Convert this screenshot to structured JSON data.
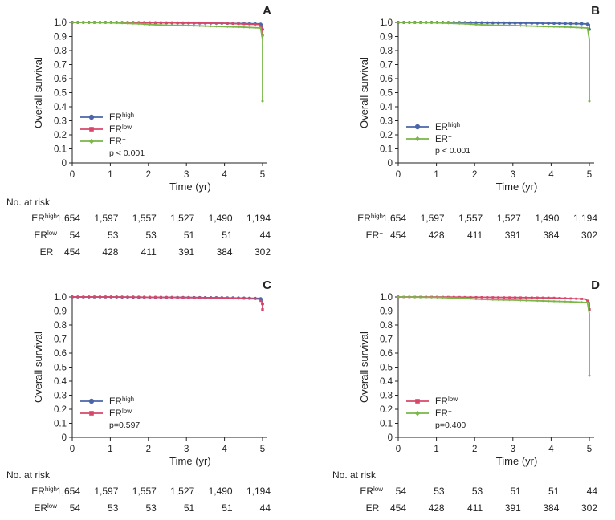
{
  "chart_data": [
    {
      "panel": "A",
      "type": "line",
      "xlabel": "Time (yr)",
      "ylabel": "Overall survival",
      "xlim": [
        0,
        5
      ],
      "ylim": [
        0,
        1.0
      ],
      "x_ticks": [
        "0",
        "1",
        "2",
        "3",
        "4",
        "5"
      ],
      "y_ticks": [
        "0",
        "0.1",
        "0.2",
        "0.3",
        "0.4",
        "0.5",
        "0.6",
        "0.7",
        "0.8",
        "0.9",
        "1.0"
      ],
      "pvalue": "p < 0.001",
      "series": [
        {
          "key": "high",
          "color": "#4a66a8",
          "marker": "circle",
          "x": [
            0,
            1,
            2,
            3,
            4,
            4.9,
            5,
            5
          ],
          "y": [
            1.0,
            1.0,
            0.998,
            0.996,
            0.994,
            0.99,
            0.985,
            0.95
          ]
        },
        {
          "key": "low",
          "color": "#d6476a",
          "marker": "square",
          "x": [
            0,
            1,
            2,
            3,
            4,
            4.9,
            5,
            5
          ],
          "y": [
            1.0,
            1.0,
            0.998,
            0.996,
            0.994,
            0.985,
            0.96,
            0.91
          ]
        },
        {
          "key": "neg",
          "color": "#7ab648",
          "marker": "diamond",
          "x": [
            0,
            1,
            1.8,
            2,
            2.5,
            3,
            3.5,
            4,
            4.5,
            4.95,
            5,
            5
          ],
          "y": [
            1.0,
            0.997,
            0.99,
            0.985,
            0.98,
            0.978,
            0.974,
            0.97,
            0.966,
            0.96,
            0.88,
            0.44
          ]
        }
      ],
      "risk_table": {
        "title": "No. at risk",
        "rows": [
          {
            "key": "high",
            "values": [
              "1,654",
              "1,597",
              "1,557",
              "1,527",
              "1,490",
              "1,194"
            ]
          },
          {
            "key": "low",
            "values": [
              "54",
              "53",
              "53",
              "51",
              "51",
              "44"
            ]
          },
          {
            "key": "neg",
            "values": [
              "454",
              "428",
              "411",
              "391",
              "384",
              "302"
            ]
          }
        ]
      }
    },
    {
      "panel": "B",
      "type": "line",
      "xlabel": "Time (yr)",
      "ylabel": "Overall survival",
      "xlim": [
        0,
        5
      ],
      "ylim": [
        0,
        1.0
      ],
      "x_ticks": [
        "0",
        "1",
        "2",
        "3",
        "4",
        "5"
      ],
      "y_ticks": [
        "0",
        "0.1",
        "0.2",
        "0.3",
        "0.4",
        "0.5",
        "0.6",
        "0.7",
        "0.8",
        "0.9",
        "1.0"
      ],
      "pvalue": "p < 0.001",
      "series": [
        {
          "key": "high",
          "color": "#4a66a8",
          "marker": "circle",
          "x": [
            0,
            1,
            2,
            3,
            4,
            4.9,
            5,
            5
          ],
          "y": [
            1.0,
            1.0,
            0.998,
            0.996,
            0.994,
            0.99,
            0.985,
            0.95
          ]
        },
        {
          "key": "neg",
          "color": "#7ab648",
          "marker": "diamond",
          "x": [
            0,
            1,
            1.8,
            2,
            2.5,
            3,
            3.5,
            4,
            4.5,
            4.95,
            5,
            5
          ],
          "y": [
            1.0,
            0.997,
            0.99,
            0.985,
            0.98,
            0.978,
            0.974,
            0.97,
            0.966,
            0.96,
            0.88,
            0.44
          ]
        }
      ],
      "risk_table": {
        "title": "",
        "rows": [
          {
            "key": "high",
            "values": [
              "1,654",
              "1,597",
              "1,557",
              "1,527",
              "1,490",
              "1,194"
            ]
          },
          {
            "key": "neg",
            "values": [
              "454",
              "428",
              "411",
              "391",
              "384",
              "302"
            ]
          }
        ]
      }
    },
    {
      "panel": "C",
      "type": "line",
      "xlabel": "Time (yr)",
      "ylabel": "Overall survival",
      "xlim": [
        0,
        5
      ],
      "ylim": [
        0,
        1.0
      ],
      "x_ticks": [
        "0",
        "1",
        "2",
        "3",
        "4",
        "5"
      ],
      "y_ticks": [
        "0",
        "0.1",
        "0.2",
        "0.3",
        "0.4",
        "0.5",
        "0.6",
        "0.7",
        "0.8",
        "0.9",
        "1.0"
      ],
      "pvalue": "p=0.597",
      "series": [
        {
          "key": "high",
          "color": "#4a66a8",
          "marker": "circle",
          "x": [
            0,
            1,
            2,
            3,
            4,
            4.9,
            5,
            5
          ],
          "y": [
            1.0,
            1.0,
            0.998,
            0.996,
            0.994,
            0.99,
            0.985,
            0.95
          ]
        },
        {
          "key": "low",
          "color": "#d6476a",
          "marker": "square",
          "x": [
            0,
            1,
            2,
            3,
            4,
            4.9,
            5,
            5
          ],
          "y": [
            1.0,
            1.0,
            0.998,
            0.996,
            0.994,
            0.985,
            0.96,
            0.91
          ]
        }
      ],
      "risk_table": {
        "title": "No. at risk",
        "rows": [
          {
            "key": "high",
            "values": [
              "1,654",
              "1,597",
              "1,557",
              "1,527",
              "1,490",
              "1,194"
            ]
          },
          {
            "key": "low",
            "values": [
              "54",
              "53",
              "53",
              "51",
              "51",
              "44"
            ]
          }
        ]
      }
    },
    {
      "panel": "D",
      "type": "line",
      "xlabel": "Time (yr)",
      "ylabel": "Overall survival",
      "xlim": [
        0,
        5
      ],
      "ylim": [
        0,
        1.0
      ],
      "x_ticks": [
        "0",
        "1",
        "2",
        "3",
        "4",
        "5"
      ],
      "y_ticks": [
        "0",
        "0.1",
        "0.2",
        "0.3",
        "0.4",
        "0.5",
        "0.6",
        "0.7",
        "0.8",
        "0.9",
        "1.0"
      ],
      "pvalue": "p=0.400",
      "series": [
        {
          "key": "low",
          "color": "#d6476a",
          "marker": "square",
          "x": [
            0,
            1,
            2,
            3,
            4,
            4.9,
            5,
            5
          ],
          "y": [
            1.0,
            1.0,
            0.998,
            0.996,
            0.994,
            0.985,
            0.96,
            0.91
          ]
        },
        {
          "key": "neg",
          "color": "#7ab648",
          "marker": "diamond",
          "x": [
            0,
            1,
            1.8,
            2,
            2.5,
            3,
            3.5,
            4,
            4.5,
            4.95,
            5,
            5
          ],
          "y": [
            1.0,
            0.997,
            0.99,
            0.985,
            0.98,
            0.978,
            0.974,
            0.97,
            0.966,
            0.96,
            0.88,
            0.44
          ]
        }
      ],
      "risk_table": {
        "title": "No. at risk",
        "rows": [
          {
            "key": "low",
            "values": [
              "54",
              "53",
              "53",
              "51",
              "51",
              "44"
            ]
          },
          {
            "key": "neg",
            "values": [
              "454",
              "428",
              "411",
              "391",
              "384",
              "302"
            ]
          }
        ]
      }
    }
  ],
  "groups": {
    "high": {
      "base": "ER",
      "sup": "high"
    },
    "low": {
      "base": "ER",
      "sup": "low"
    },
    "neg": {
      "base": "ER",
      "sup": "−"
    }
  }
}
